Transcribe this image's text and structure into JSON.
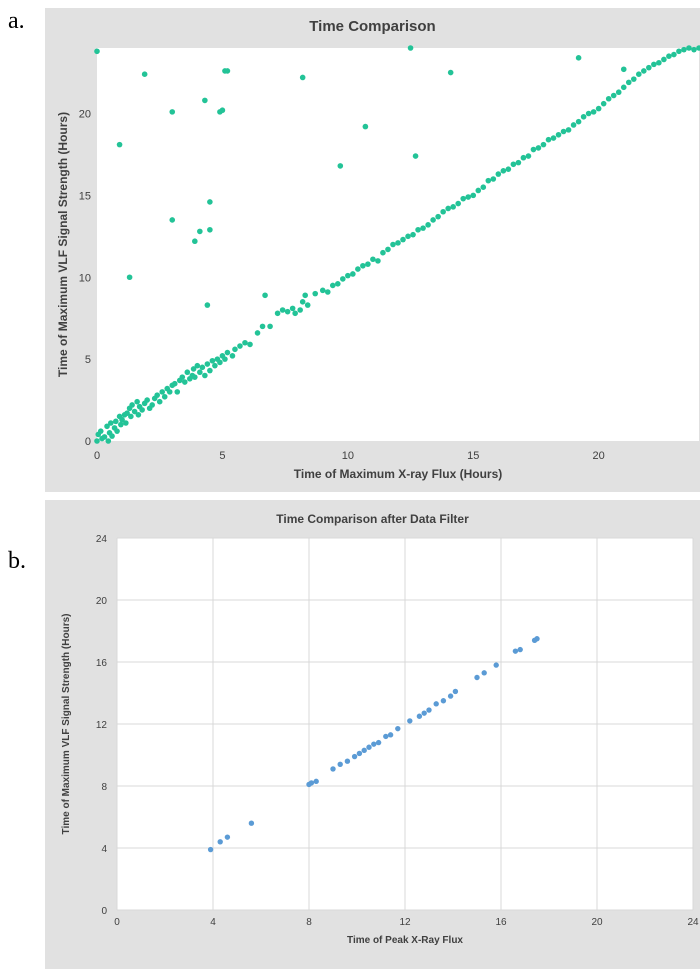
{
  "panels": [
    {
      "label": "a."
    },
    {
      "label": "b."
    }
  ],
  "colors": {
    "series_a": "#23c397",
    "series_b": "#5b9bd5",
    "panel_bg": "#e1e1e1",
    "grid": "#d9d9d9"
  },
  "chart_data": [
    {
      "type": "scatter",
      "title": "Time Comparison",
      "xlabel": "Time of Maximum X-ray Flux (Hours)",
      "ylabel": "Time of Maximum VLF Signal Strength (Hours)",
      "xlim": [
        0,
        24
      ],
      "ylim": [
        0,
        24
      ],
      "xticks": [
        0,
        5,
        10,
        15,
        20
      ],
      "yticks": [
        0,
        5,
        10,
        15,
        20
      ],
      "grid": false,
      "legend": "none",
      "series": [
        {
          "points": [
            [
              0.0,
              0.0
            ],
            [
              0.05,
              0.4
            ],
            [
              0.15,
              0.6
            ],
            [
              0.2,
              0.15
            ],
            [
              0.3,
              0.25
            ],
            [
              0.4,
              0.9
            ],
            [
              0.45,
              0.0
            ],
            [
              0.5,
              0.5
            ],
            [
              0.55,
              1.1
            ],
            [
              0.6,
              0.3
            ],
            [
              0.7,
              0.8
            ],
            [
              0.75,
              1.2
            ],
            [
              0.8,
              0.6
            ],
            [
              0.9,
              1.5
            ],
            [
              0.95,
              1.0
            ],
            [
              1.0,
              1.3
            ],
            [
              1.1,
              1.6
            ],
            [
              1.15,
              1.1
            ],
            [
              1.2,
              1.7
            ],
            [
              1.3,
              2.0
            ],
            [
              1.35,
              1.5
            ],
            [
              1.4,
              2.2
            ],
            [
              1.5,
              1.8
            ],
            [
              1.6,
              2.4
            ],
            [
              1.65,
              1.6
            ],
            [
              1.7,
              2.1
            ],
            [
              1.8,
              1.9
            ],
            [
              1.9,
              2.3
            ],
            [
              2.0,
              2.5
            ],
            [
              2.1,
              2.0
            ],
            [
              2.2,
              2.2
            ],
            [
              2.3,
              2.6
            ],
            [
              2.4,
              2.8
            ],
            [
              2.5,
              2.4
            ],
            [
              2.6,
              3.0
            ],
            [
              2.7,
              2.7
            ],
            [
              2.8,
              3.2
            ],
            [
              2.9,
              3.0
            ],
            [
              3.0,
              3.4
            ],
            [
              3.1,
              3.5
            ],
            [
              3.2,
              3.0
            ],
            [
              3.3,
              3.7
            ],
            [
              3.4,
              3.9
            ],
            [
              3.5,
              3.6
            ],
            [
              3.6,
              4.2
            ],
            [
              3.7,
              3.8
            ],
            [
              3.8,
              4.0
            ],
            [
              3.85,
              4.4
            ],
            [
              3.9,
              3.9
            ],
            [
              4.0,
              4.6
            ],
            [
              4.1,
              4.2
            ],
            [
              4.2,
              4.5
            ],
            [
              4.3,
              4.0
            ],
            [
              4.4,
              4.7
            ],
            [
              4.5,
              4.3
            ],
            [
              4.6,
              4.9
            ],
            [
              4.7,
              4.6
            ],
            [
              4.8,
              5.0
            ],
            [
              4.9,
              4.8
            ],
            [
              5.0,
              5.2
            ],
            [
              5.1,
              5.0
            ],
            [
              5.2,
              5.4
            ],
            [
              5.4,
              5.2
            ],
            [
              5.5,
              5.6
            ],
            [
              5.7,
              5.8
            ],
            [
              5.9,
              6.0
            ],
            [
              6.1,
              5.9
            ],
            [
              6.4,
              6.6
            ],
            [
              6.6,
              7.0
            ],
            [
              6.9,
              7.0
            ],
            [
              7.2,
              7.8
            ],
            [
              7.4,
              8.0
            ],
            [
              7.6,
              7.9
            ],
            [
              7.8,
              8.1
            ],
            [
              7.9,
              7.8
            ],
            [
              8.1,
              8.0
            ],
            [
              8.2,
              8.5
            ],
            [
              8.4,
              8.3
            ],
            [
              8.7,
              9.0
            ],
            [
              9.0,
              9.2
            ],
            [
              9.2,
              9.1
            ],
            [
              9.4,
              9.5
            ],
            [
              9.6,
              9.6
            ],
            [
              9.8,
              9.9
            ],
            [
              10.0,
              10.1
            ],
            [
              10.2,
              10.2
            ],
            [
              10.4,
              10.5
            ],
            [
              10.6,
              10.7
            ],
            [
              10.8,
              10.8
            ],
            [
              11.0,
              11.1
            ],
            [
              11.2,
              11.0
            ],
            [
              11.4,
              11.5
            ],
            [
              11.6,
              11.7
            ],
            [
              11.8,
              12.0
            ],
            [
              12.0,
              12.1
            ],
            [
              12.2,
              12.3
            ],
            [
              12.4,
              12.5
            ],
            [
              12.6,
              12.6
            ],
            [
              12.8,
              12.9
            ],
            [
              13.0,
              13.0
            ],
            [
              13.2,
              13.2
            ],
            [
              13.4,
              13.5
            ],
            [
              13.6,
              13.7
            ],
            [
              13.8,
              14.0
            ],
            [
              14.0,
              14.2
            ],
            [
              14.2,
              14.3
            ],
            [
              14.4,
              14.5
            ],
            [
              14.6,
              14.8
            ],
            [
              14.8,
              14.9
            ],
            [
              15.0,
              15.0
            ],
            [
              15.2,
              15.3
            ],
            [
              15.4,
              15.5
            ],
            [
              15.6,
              15.9
            ],
            [
              15.8,
              16.0
            ],
            [
              16.0,
              16.3
            ],
            [
              16.2,
              16.5
            ],
            [
              16.4,
              16.6
            ],
            [
              16.6,
              16.9
            ],
            [
              16.8,
              17.0
            ],
            [
              17.0,
              17.3
            ],
            [
              17.2,
              17.4
            ],
            [
              17.4,
              17.8
            ],
            [
              17.6,
              17.9
            ],
            [
              17.8,
              18.1
            ],
            [
              18.0,
              18.4
            ],
            [
              18.2,
              18.5
            ],
            [
              18.4,
              18.7
            ],
            [
              18.6,
              18.9
            ],
            [
              18.8,
              19.0
            ],
            [
              19.0,
              19.3
            ],
            [
              19.2,
              19.5
            ],
            [
              19.4,
              19.8
            ],
            [
              19.6,
              20.0
            ],
            [
              19.8,
              20.1
            ],
            [
              20.0,
              20.3
            ],
            [
              20.2,
              20.6
            ],
            [
              20.4,
              20.9
            ],
            [
              20.6,
              21.1
            ],
            [
              20.8,
              21.3
            ],
            [
              21.0,
              21.6
            ],
            [
              21.2,
              21.9
            ],
            [
              21.4,
              22.1
            ],
            [
              21.6,
              22.4
            ],
            [
              21.8,
              22.6
            ],
            [
              22.0,
              22.8
            ],
            [
              22.2,
              23.0
            ],
            [
              22.4,
              23.1
            ],
            [
              22.6,
              23.3
            ],
            [
              22.8,
              23.5
            ],
            [
              23.0,
              23.6
            ],
            [
              23.2,
              23.8
            ],
            [
              23.4,
              23.9
            ],
            [
              23.6,
              24.0
            ],
            [
              23.8,
              23.9
            ],
            [
              24.0,
              24.0
            ],
            [
              0.0,
              23.8
            ],
            [
              0.9,
              18.1
            ],
            [
              1.3,
              10.0
            ],
            [
              1.9,
              22.4
            ],
            [
              3.0,
              20.1
            ],
            [
              3.0,
              13.5
            ],
            [
              3.9,
              12.2
            ],
            [
              4.1,
              12.8
            ],
            [
              4.3,
              20.8
            ],
            [
              4.5,
              14.6
            ],
            [
              4.5,
              12.9
            ],
            [
              4.4,
              8.3
            ],
            [
              4.9,
              20.1
            ],
            [
              5.0,
              20.2
            ],
            [
              5.1,
              22.6
            ],
            [
              5.2,
              22.6
            ],
            [
              6.7,
              8.9
            ],
            [
              8.2,
              22.2
            ],
            [
              8.3,
              8.9
            ],
            [
              9.7,
              16.8
            ],
            [
              10.7,
              19.2
            ],
            [
              12.5,
              24.0
            ],
            [
              12.7,
              17.4
            ],
            [
              14.1,
              22.5
            ],
            [
              19.2,
              23.4
            ],
            [
              21.0,
              22.7
            ]
          ]
        }
      ]
    },
    {
      "type": "scatter",
      "title": "Time Comparison after Data Filter",
      "xlabel": "Time of Peak X-Ray Flux",
      "ylabel": "Time of Maximum VLF Signal Strength (Hours)",
      "xlim": [
        0,
        24
      ],
      "ylim": [
        0,
        24
      ],
      "xticks": [
        0,
        4,
        8,
        12,
        16,
        20,
        24
      ],
      "yticks": [
        0,
        4,
        8,
        12,
        16,
        20,
        24
      ],
      "grid": true,
      "legend": "none",
      "series": [
        {
          "points": [
            [
              3.9,
              3.9
            ],
            [
              4.3,
              4.4
            ],
            [
              4.6,
              4.7
            ],
            [
              5.6,
              5.6
            ],
            [
              8.0,
              8.1
            ],
            [
              8.1,
              8.2
            ],
            [
              8.3,
              8.3
            ],
            [
              9.0,
              9.1
            ],
            [
              9.3,
              9.4
            ],
            [
              9.6,
              9.6
            ],
            [
              9.9,
              9.9
            ],
            [
              10.1,
              10.1
            ],
            [
              10.3,
              10.3
            ],
            [
              10.5,
              10.5
            ],
            [
              10.7,
              10.7
            ],
            [
              10.9,
              10.8
            ],
            [
              11.2,
              11.2
            ],
            [
              11.4,
              11.3
            ],
            [
              11.7,
              11.7
            ],
            [
              12.2,
              12.2
            ],
            [
              12.6,
              12.5
            ],
            [
              12.8,
              12.7
            ],
            [
              13.0,
              12.9
            ],
            [
              13.3,
              13.3
            ],
            [
              13.6,
              13.5
            ],
            [
              13.9,
              13.8
            ],
            [
              14.1,
              14.1
            ],
            [
              15.0,
              15.0
            ],
            [
              15.3,
              15.3
            ],
            [
              15.8,
              15.8
            ],
            [
              16.6,
              16.7
            ],
            [
              16.8,
              16.8
            ],
            [
              17.4,
              17.4
            ],
            [
              17.5,
              17.5
            ]
          ]
        }
      ]
    }
  ]
}
